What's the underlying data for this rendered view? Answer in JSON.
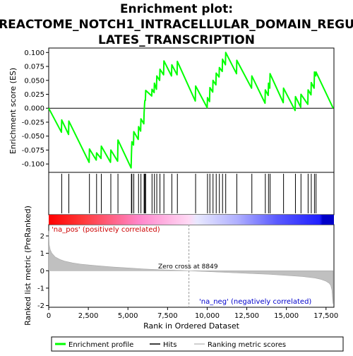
{
  "title_line1": "Enrichment plot:",
  "title_line2": "REACTOME_NOTCH1_INTRACELLULAR_DOMAIN_REGU",
  "title_line3": "LATES_TRANSCRIPTION",
  "colors": {
    "enrichment": "#00ff00",
    "hits": "#000000",
    "ranking": "#c0c0c0",
    "positive": "#ff0000",
    "negative": "#0000ff"
  },
  "annotations": {
    "pos_label": "'na_pos' (positively correlated)",
    "neg_label": "'na_neg' (negatively correlated)",
    "zero_cross": "Zero cross at 8849"
  },
  "legend": [
    {
      "label": "Enrichment profile",
      "kind": "line-green"
    },
    {
      "label": "Hits",
      "kind": "line-black"
    },
    {
      "label": "Ranking metric scores",
      "kind": "line-gray"
    }
  ],
  "chart_data": [
    {
      "type": "line",
      "panel": "enrichment",
      "ylabel": "Enrichment score (ES)",
      "xlim": [
        0,
        18000
      ],
      "ylim": [
        -0.115,
        0.108
      ],
      "y_ticks": [
        0.1,
        0.075,
        0.05,
        0.025,
        0.0,
        -0.025,
        -0.05,
        -0.075,
        -0.1
      ],
      "y_tick_labels": [
        "0.100",
        "0.075",
        "0.050",
        "0.025",
        "0.000",
        "-0.025",
        "-0.050",
        "-0.075",
        "-0.100"
      ],
      "x": [
        0,
        800,
        820,
        1250,
        1270,
        2550,
        2570,
        3000,
        3020,
        3300,
        3320,
        3900,
        3920,
        4350,
        4370,
        5200,
        5220,
        5250,
        5350,
        5370,
        5650,
        5670,
        5800,
        5820,
        6000,
        6020,
        6050,
        6070,
        6100,
        6120,
        6500,
        6520,
        6650,
        6670,
        6800,
        6820,
        7000,
        7020,
        7250,
        7270,
        7750,
        7770,
        8100,
        8120,
        9250,
        9270,
        10000,
        10020,
        10150,
        10170,
        10350,
        10370,
        10550,
        10570,
        10750,
        10770,
        10950,
        10970,
        11150,
        11170,
        11850,
        11870,
        12800,
        12820,
        13650,
        13670,
        13850,
        13870,
        13950,
        13970,
        14800,
        14820,
        15550,
        15570,
        15900,
        15920,
        16350,
        16370,
        16550,
        16570,
        16750,
        16770,
        16850,
        16870,
        17950
      ],
      "y": [
        0.0,
        -0.043,
        -0.021,
        -0.047,
        -0.023,
        -0.097,
        -0.073,
        -0.093,
        -0.08,
        -0.09,
        -0.068,
        -0.097,
        -0.075,
        -0.095,
        -0.057,
        -0.107,
        -0.082,
        -0.06,
        -0.066,
        -0.042,
        -0.056,
        -0.033,
        -0.041,
        -0.019,
        -0.028,
        -0.008,
        0.008,
        0.014,
        0.014,
        0.032,
        0.022,
        0.034,
        0.028,
        0.045,
        0.034,
        0.058,
        0.05,
        0.07,
        0.06,
        0.085,
        0.058,
        0.078,
        0.06,
        0.084,
        0.013,
        0.04,
        0.001,
        0.019,
        0.012,
        0.037,
        0.029,
        0.05,
        0.042,
        0.063,
        0.056,
        0.073,
        0.066,
        0.088,
        0.078,
        0.1,
        0.062,
        0.086,
        0.036,
        0.058,
        0.009,
        0.033,
        0.023,
        0.045,
        0.036,
        0.062,
        0.01,
        0.036,
        -0.004,
        0.021,
        0.002,
        0.025,
        0.007,
        0.033,
        0.024,
        0.046,
        0.036,
        0.065,
        0.058,
        0.065,
        0.0
      ]
    },
    {
      "type": "hits",
      "panel": "hits",
      "xlim": [
        0,
        18000
      ],
      "x": [
        820,
        1270,
        2570,
        3020,
        3320,
        3920,
        4370,
        5220,
        5250,
        5370,
        5670,
        5820,
        6020,
        6050,
        6070,
        6120,
        6520,
        6670,
        6820,
        7020,
        7270,
        7770,
        8120,
        9270,
        10020,
        10170,
        10370,
        10570,
        10770,
        10970,
        11170,
        11870,
        12820,
        13670,
        13870,
        13970,
        14820,
        15570,
        15920,
        16370,
        16570,
        16770,
        16870
      ]
    },
    {
      "type": "area",
      "panel": "ranking",
      "xlabel": "Rank in Ordered Dataset",
      "ylabel": "Ranked list metric (PreRanked)",
      "xlim": [
        0,
        18000
      ],
      "ylim": [
        -2.1,
        2.65
      ],
      "y_ticks": [
        2,
        1,
        0,
        -1,
        -2
      ],
      "y_tick_labels": [
        "2",
        "1",
        "0",
        "-1",
        "-2"
      ],
      "x_ticks": [
        0,
        2500,
        5000,
        7500,
        10000,
        12500,
        15000,
        17500
      ],
      "x_tick_labels": [
        "0",
        "2,500",
        "5,000",
        "7,500",
        "10,000",
        "12,500",
        "15,000",
        "17,500"
      ],
      "zero_cross": 8849,
      "x": [
        0,
        30,
        100,
        200,
        400,
        700,
        1000,
        1500,
        2000,
        3000,
        4000,
        5000,
        6000,
        7000,
        8000,
        8849,
        10000,
        11000,
        12000,
        13000,
        14000,
        15000,
        16000,
        16800,
        17200,
        17500,
        17700,
        17800,
        17870,
        17940
      ],
      "y": [
        2.3,
        1.5,
        1.2,
        1.0,
        0.8,
        0.65,
        0.55,
        0.45,
        0.38,
        0.29,
        0.22,
        0.16,
        0.1,
        0.06,
        0.03,
        0.0,
        -0.05,
        -0.09,
        -0.13,
        -0.17,
        -0.21,
        -0.27,
        -0.33,
        -0.42,
        -0.5,
        -0.6,
        -0.72,
        -0.85,
        -1.1,
        -1.9
      ]
    }
  ]
}
